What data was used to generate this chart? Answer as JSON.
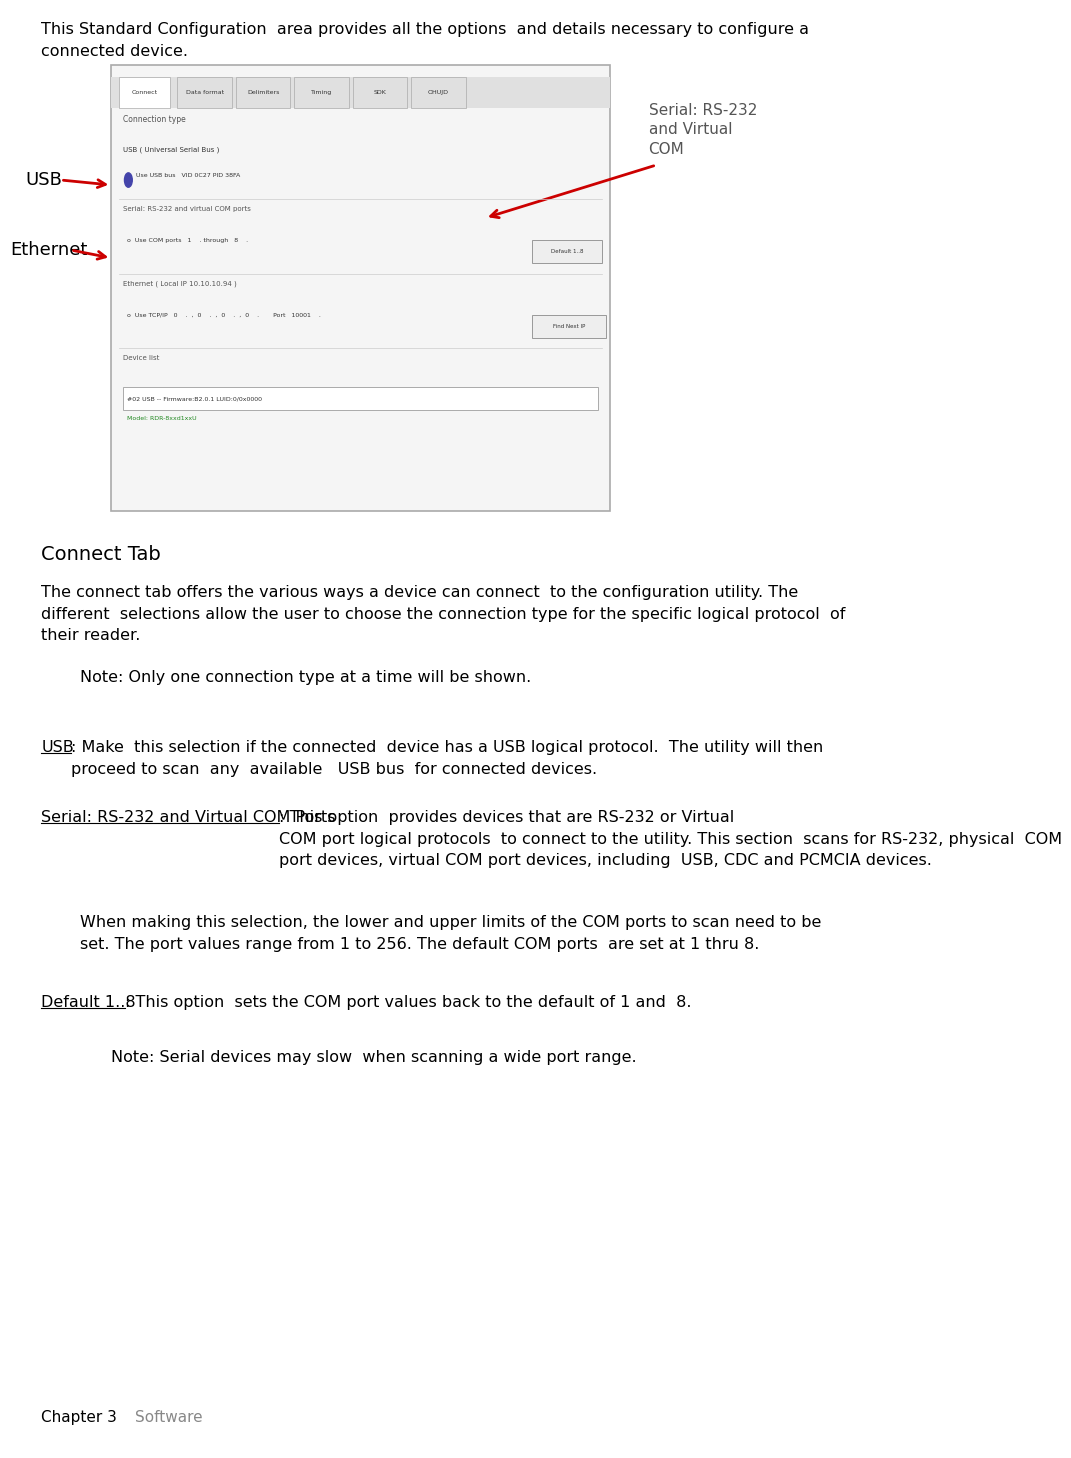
{
  "bg_color": "#ffffff",
  "text_color": "#000000",
  "gray_text": "#888888",
  "red_arrow": "#cc0000",
  "figure_width": 10.36,
  "figure_height": 14.38,
  "intro_text": "This Standard Configuration  area provides all the options  and details necessary to configure a\nconnected device.",
  "screenshot_label_usb": "USB",
  "screenshot_label_ethernet": "Ethernet",
  "screenshot_label_serial": "Serial: RS-232\nand Virtual\nCOM",
  "section_title": "Connect Tab",
  "para1": "The connect tab offers the various ways a device can connect  to the configuration utility. The\ndifferent  selections allow the user to choose the connection type for the specific logical protocol  of\ntheir reader.",
  "note1": "Note: Only one connection type at a time will be shown.",
  "usb_label": "USB",
  "usb_text": ": Make  this selection if the connected  device has a USB logical protocol.  The utility will then\nproceed to scan  any  available   USB bus  for connected devices.",
  "serial_label": "Serial: RS-232 and Virtual COM Ports",
  "serial_text": ": This option  provides devices that are RS-232 or Virtual\nCOM port logical protocols  to connect to the utility. This section  scans for RS-232, physical  COM\nport devices, virtual COM port devices, including  USB, CDC and PCMCIA devices.",
  "indent_para1": "When making this selection, the lower and upper limits of the COM ports to scan need to be\nset. The port values range from 1 to 256. The default COM ports  are set at 1 thru 8.",
  "default_label": "Default 1..8",
  "default_text": ": This option  sets the COM port values back to the default of 1 and  8.",
  "note2": "Note: Serial devices may slow  when scanning a wide port range.",
  "footer_chapter": "Chapter 3",
  "footer_software": "Software"
}
